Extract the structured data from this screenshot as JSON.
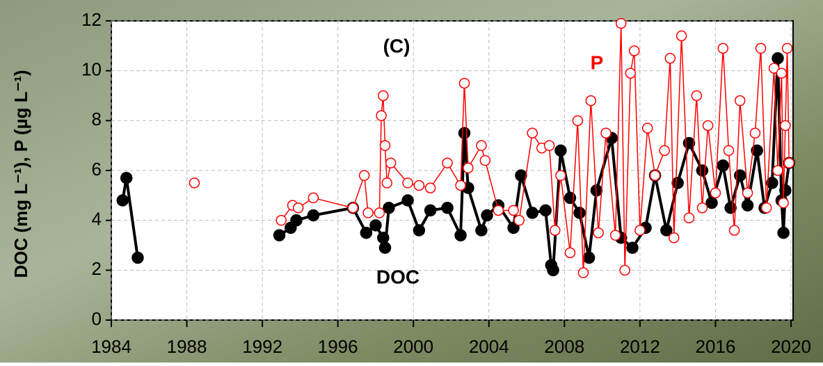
{
  "chart_data": {
    "type": "line",
    "ylabel": "DOC (mg L⁻¹), P (µg L⁻¹)",
    "annotations": [
      "(C)",
      "P",
      "DOC"
    ],
    "xlim": [
      1984,
      2020
    ],
    "xticks": [
      1984,
      1988,
      1992,
      1996,
      2000,
      2004,
      2008,
      2012,
      2016,
      2020
    ],
    "ylim": [
      0,
      12
    ],
    "yticks": [
      0,
      2,
      4,
      6,
      8,
      10,
      12
    ],
    "grid": true,
    "series": [
      {
        "name": "DOC",
        "color": "#000000",
        "x": [
          1984.6,
          1984.8,
          1985.4,
          1989,
          1992.9,
          1993.5,
          1993.8,
          1994.7,
          1996.8,
          1997.5,
          1998.0,
          1998.4,
          1998.5,
          1998.7,
          1999.7,
          2000.3,
          2000.9,
          2001.8,
          2002.5,
          2002.7,
          2002.9,
          2003.6,
          2003.9,
          2004.5,
          2005.3,
          2005.7,
          2006.3,
          2007.0,
          2007.3,
          2007.4,
          2007.8,
          2008.3,
          2008.8,
          2009.3,
          2009.7,
          2010.5,
          2011.0,
          2011.6,
          2012.3,
          2012.8,
          2013.4,
          2014.0,
          2014.6,
          2015.3,
          2015.8,
          2016.4,
          2016.8,
          2017.3,
          2017.7,
          2018.2,
          2018.6,
          2019.0,
          2019.3,
          2019.5,
          2019.6,
          2019.7,
          2019.9
        ],
        "values": [
          4.8,
          5.7,
          2.5,
          null,
          3.4,
          3.7,
          4.0,
          4.2,
          4.5,
          3.5,
          3.8,
          3.3,
          2.9,
          4.5,
          4.8,
          3.6,
          4.4,
          4.5,
          3.4,
          7.5,
          5.3,
          3.6,
          4.2,
          4.6,
          3.7,
          5.8,
          4.3,
          4.4,
          2.2,
          2.0,
          6.8,
          4.9,
          4.3,
          2.5,
          5.2,
          7.3,
          3.3,
          2.9,
          3.7,
          5.8,
          3.6,
          5.5,
          7.1,
          6.0,
          4.7,
          6.2,
          4.5,
          5.8,
          4.6,
          6.8,
          4.5,
          5.5,
          10.5,
          4.8,
          3.5,
          5.2,
          6.3
        ]
      },
      {
        "name": "P",
        "color": "#ff0000",
        "x": [
          1988.4,
          1990,
          1993.0,
          1993.6,
          1993.9,
          1994.7,
          1996.8,
          1997.4,
          1997.6,
          1998.2,
          1998.3,
          1998.4,
          1998.5,
          1998.6,
          1998.8,
          1999.7,
          2000.3,
          2000.9,
          2001.8,
          2002.5,
          2002.7,
          2002.9,
          2003.6,
          2003.8,
          2004.5,
          2005.3,
          2005.6,
          2006.3,
          2006.8,
          2007.2,
          2007.5,
          2007.8,
          2008.3,
          2008.7,
          2009.0,
          2009.4,
          2009.8,
          2010.2,
          2010.7,
          2011.0,
          2011.2,
          2011.5,
          2011.7,
          2012.0,
          2012.4,
          2012.8,
          2013.3,
          2013.6,
          2013.8,
          2014.2,
          2014.6,
          2015.0,
          2015.3,
          2015.6,
          2016.0,
          2016.4,
          2016.7,
          2017.0,
          2017.3,
          2017.7,
          2018.1,
          2018.4,
          2018.7,
          2019.1,
          2019.3,
          2019.5,
          2019.6,
          2019.7,
          2019.8,
          2019.9
        ],
        "values": [
          5.5,
          null,
          4.0,
          4.6,
          4.5,
          4.9,
          4.5,
          5.8,
          4.3,
          4.3,
          8.2,
          9.0,
          7.0,
          5.5,
          6.3,
          5.5,
          5.4,
          5.3,
          6.3,
          5.4,
          9.5,
          6.1,
          7.0,
          6.4,
          4.4,
          4.4,
          4.0,
          7.5,
          6.9,
          7.0,
          3.6,
          5.8,
          2.7,
          8.0,
          1.9,
          8.8,
          3.5,
          7.5,
          3.4,
          11.9,
          2.0,
          9.9,
          10.8,
          3.6,
          7.7,
          5.8,
          6.8,
          10.5,
          3.3,
          11.4,
          4.1,
          9.0,
          4.5,
          7.8,
          5.1,
          10.9,
          6.8,
          3.6,
          8.8,
          5.1,
          7.5,
          10.9,
          4.5,
          10.1,
          6.0,
          9.9,
          4.7,
          7.8,
          10.9,
          6.3
        ]
      }
    ]
  }
}
